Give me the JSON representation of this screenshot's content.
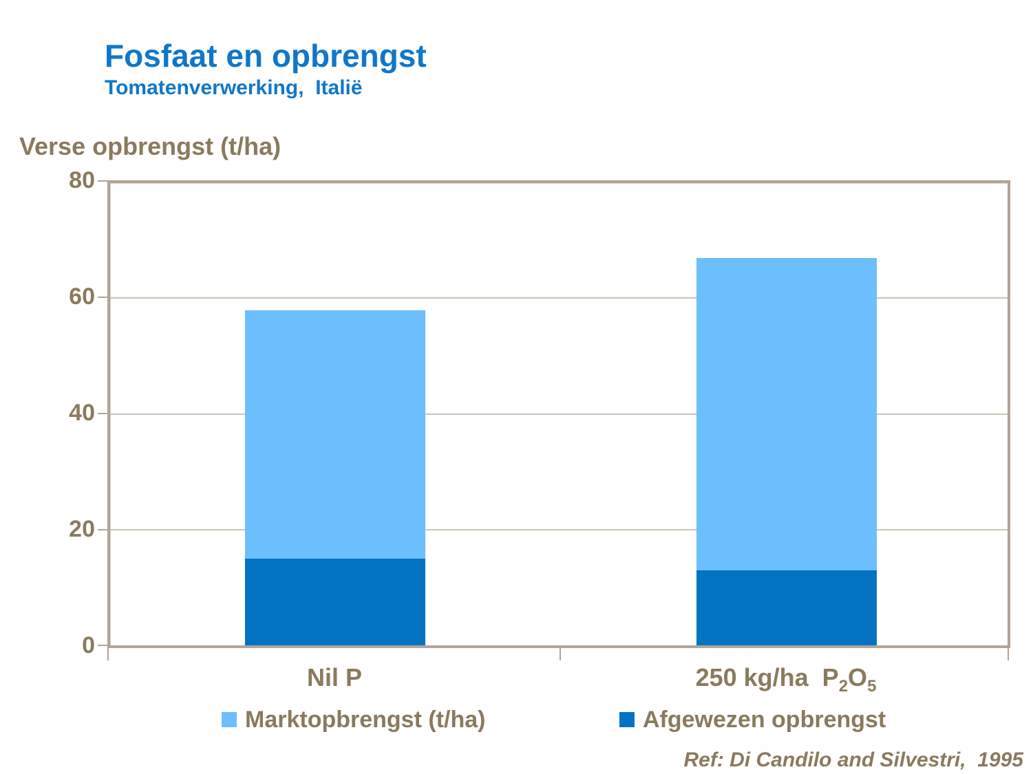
{
  "slide": {
    "title": "Fosfaat en opbrengst",
    "subtitle": "Tomatenverwerking,  Italië",
    "reference": "Ref: Di Candilo and Silvestri,  1995"
  },
  "axis": {
    "y_label": "Verse opbrengst (t/ha)",
    "y_ticks": [
      "80",
      "60",
      "40",
      "20",
      "0"
    ]
  },
  "xaxis": {
    "cat1": "Nil P",
    "cat2": {
      "p1": "250 kg/ha  P",
      "s1": "2",
      "p2": "O",
      "s2": "5"
    }
  },
  "legend": {
    "item1": "Marktopbrengst (t/ha)",
    "item2": "Afgewezen opbrengst"
  },
  "colors": {
    "title_blue": "#1077C8",
    "light_blue": "#6CBEFC",
    "dark_blue": "#0272C2",
    "text_brown": "#8A7A5E",
    "frame_tan": "#B2A496",
    "grid_tan": "#CCC3B6"
  },
  "chart_data": {
    "type": "bar",
    "stacked": true,
    "title": "Fosfaat en opbrengst",
    "subtitle": "Tomatenverwerking, Italië",
    "ylabel": "Verse opbrengst (t/ha)",
    "ylim": [
      0,
      80
    ],
    "yticks": [
      0,
      20,
      40,
      60,
      80
    ],
    "grid": true,
    "legend_position": "bottom",
    "categories": [
      "Nil P",
      "250 kg/ha P₂O₅"
    ],
    "series": [
      {
        "name": "Afgewezen opbrengst",
        "color": "#0272C2",
        "values": [
          15,
          13
        ]
      },
      {
        "name": "Marktopbrengst (t/ha)",
        "color": "#6CBEFC",
        "values": [
          43,
          54
        ]
      }
    ],
    "totals": [
      58,
      67
    ],
    "reference": "Ref: Di Candilo and Silvestri, 1995"
  }
}
